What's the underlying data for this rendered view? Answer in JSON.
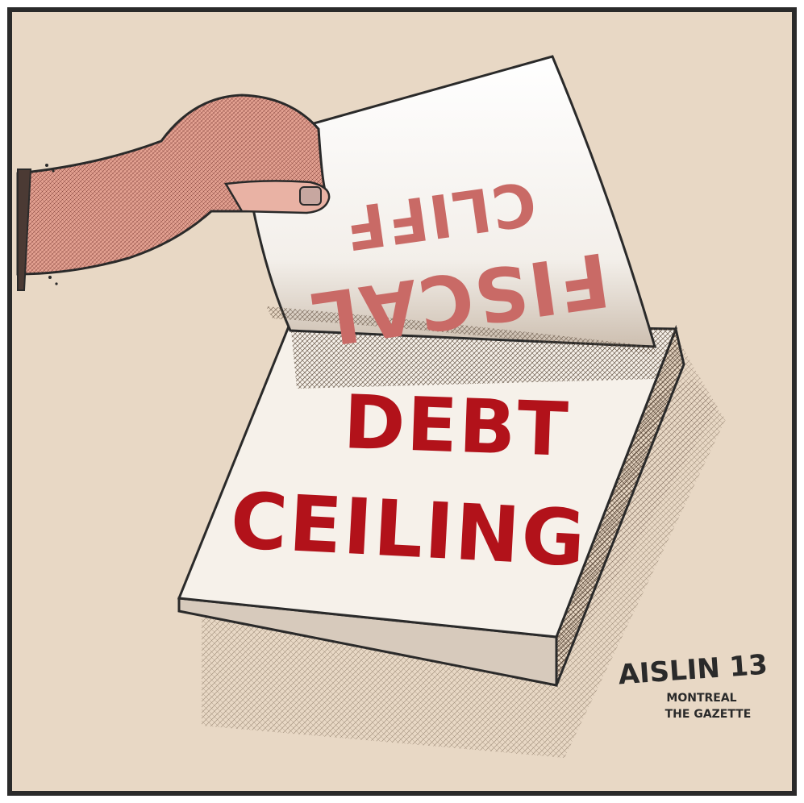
{
  "cartoon": {
    "top_page_text": {
      "line1": "FISCAL",
      "line2": "CLIFF"
    },
    "bottom_page_text": {
      "line1": "DEBT",
      "line2": "CEILING"
    },
    "signature": {
      "name": "AISLIN 13",
      "line2": "MONTREAL",
      "line3": "THE GAZETTE"
    },
    "colors": {
      "background": "#e8d8c5",
      "border": "#2a2a2a",
      "paper": "#f6f1ea",
      "headline_red": "#b2121a",
      "faded_red": "#c96a66",
      "skin": "#e6a79a",
      "hatch": "#6e5a4a"
    }
  }
}
